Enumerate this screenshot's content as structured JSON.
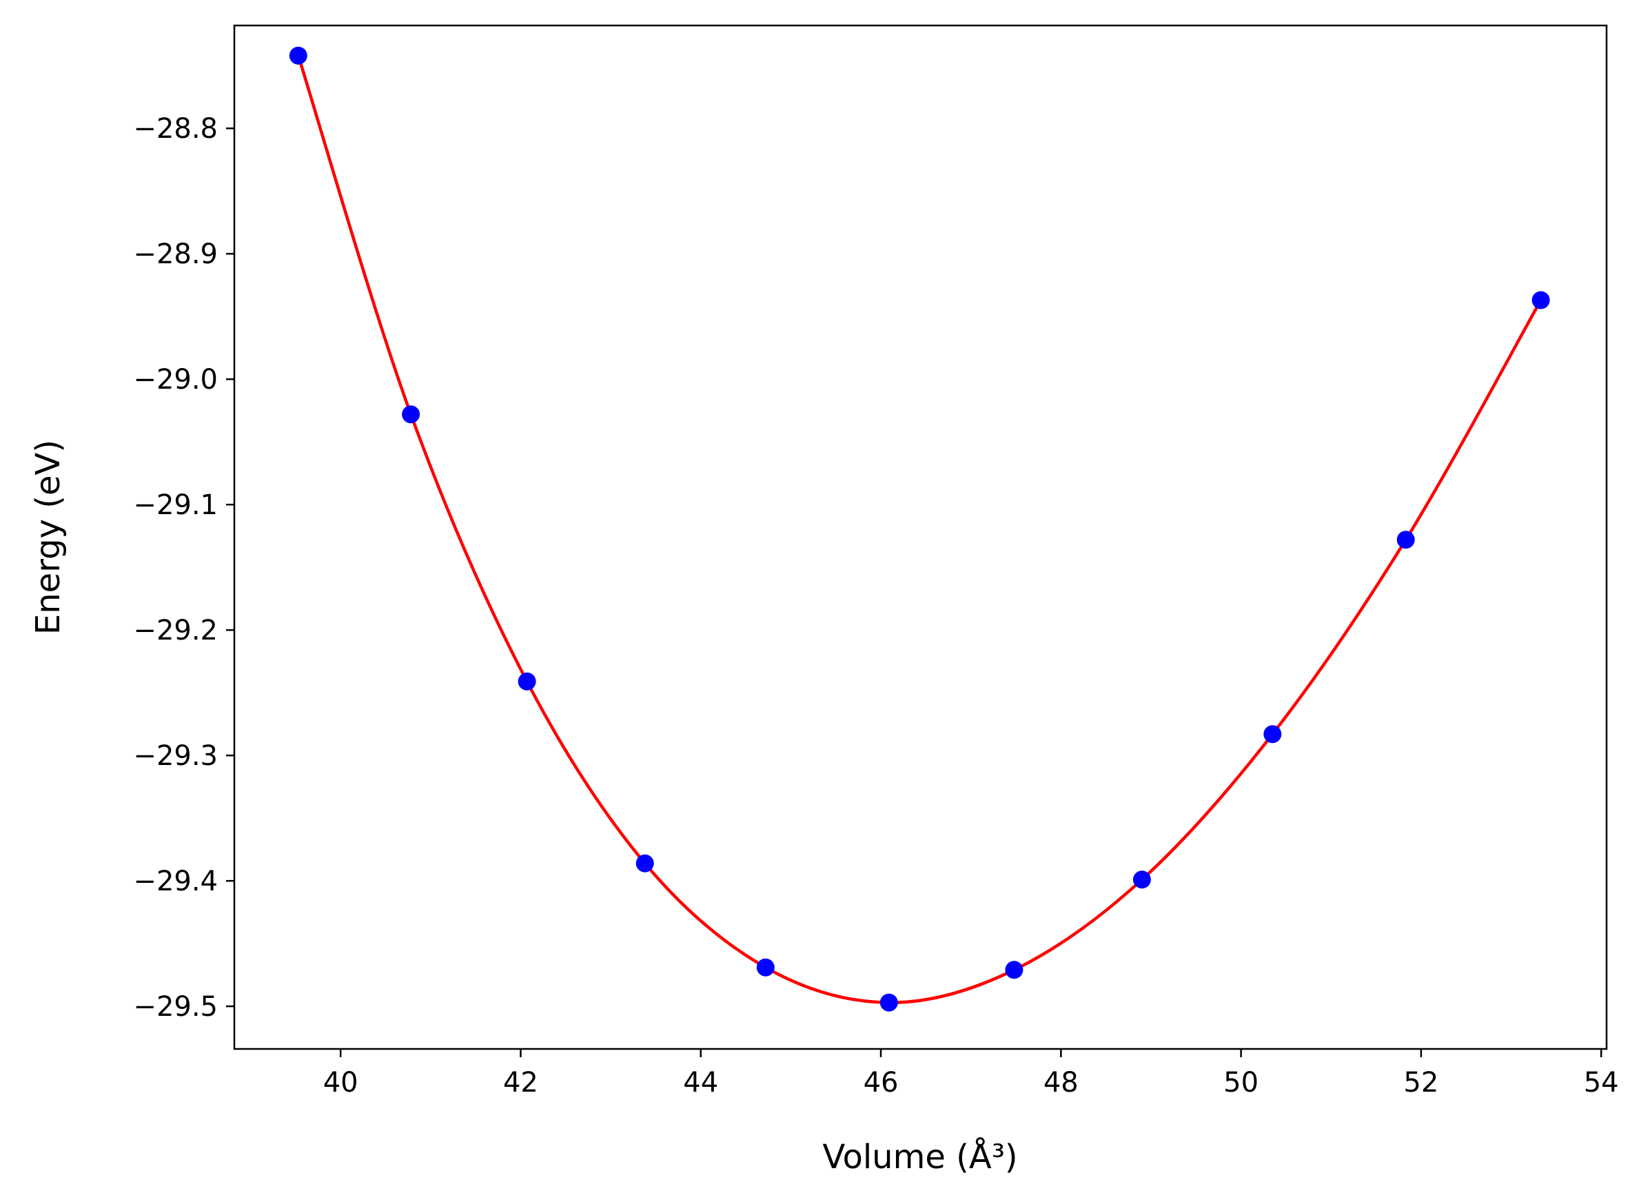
{
  "chart_data": {
    "type": "scatter",
    "xlabel": "Volume (Å³)",
    "ylabel": "Energy (eV)",
    "xlim": [
      38.82,
      54.06
    ],
    "ylim": [
      -29.534,
      -28.718
    ],
    "xticks": [
      40,
      42,
      44,
      46,
      48,
      50,
      52,
      54
    ],
    "yticks": [
      -28.8,
      -28.9,
      -29.0,
      -29.1,
      -29.2,
      -29.3,
      -29.4,
      -29.5
    ],
    "xtick_labels": [
      "40",
      "42",
      "44",
      "46",
      "48",
      "50",
      "52",
      "54"
    ],
    "ytick_labels": [
      "−28.8",
      "−28.9",
      "−29.0",
      "−29.1",
      "−29.2",
      "−29.3",
      "−29.4",
      "−29.5"
    ],
    "grid": false,
    "legend": "none",
    "series": [
      {
        "kind": "points",
        "color": "#0000ff",
        "x": [
          39.53,
          40.78,
          42.07,
          43.38,
          44.72,
          46.09,
          47.48,
          48.9,
          50.35,
          51.83,
          53.33
        ],
        "y": [
          -28.742,
          -29.028,
          -29.241,
          -29.386,
          -29.469,
          -29.497,
          -29.471,
          -29.399,
          -29.283,
          -29.128,
          -28.937
        ]
      },
      {
        "kind": "fit-curve",
        "color": "#ff0000",
        "x": [
          39.53,
          40.78,
          42.07,
          43.38,
          44.72,
          46.09,
          47.48,
          48.9,
          50.35,
          51.83,
          53.33
        ],
        "y": [
          -28.742,
          -29.028,
          -29.241,
          -29.386,
          -29.469,
          -29.497,
          -29.471,
          -29.399,
          -29.283,
          -29.128,
          -28.937
        ]
      }
    ]
  }
}
